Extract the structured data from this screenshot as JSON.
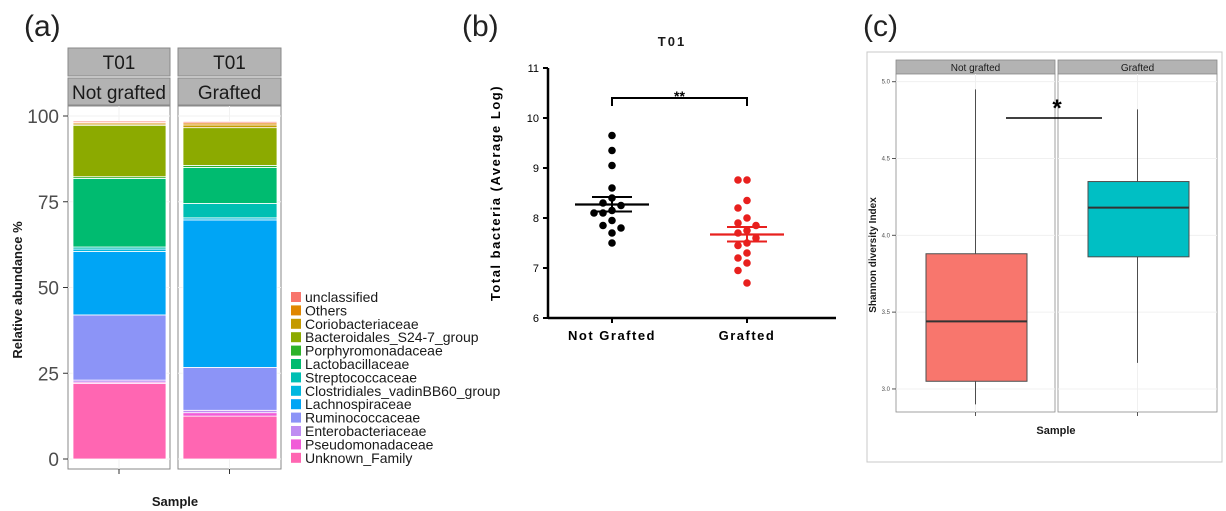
{
  "panels": {
    "a": "(a)",
    "b": "(b)",
    "c": "(c)"
  },
  "colors": {
    "strip_bg": "#b3b3b3",
    "panel_bg": "#ebebeb",
    "grid": "#ffffff",
    "not_grafted_points": "#000000",
    "grafted_points": "#e8201e",
    "box_not_grafted": "#f8766d",
    "box_grafted": "#00bfc4"
  },
  "chart_data": [
    {
      "type": "bar",
      "stacked": true,
      "panel": "(a)",
      "facet_top": "T01",
      "facets": [
        "Not grafted",
        "Grafted"
      ],
      "categories": [
        "Not grafted",
        "Grafted"
      ],
      "xlabel": "Sample",
      "ylabel": "Relative abundance %",
      "ylim": [
        0,
        100
      ],
      "yticks": [
        0,
        25,
        50,
        75,
        100
      ],
      "legend_position": "right",
      "legend_order": [
        "unclassified",
        "Others",
        "Coriobacteriaceae",
        "Bacteroidales_S24-7_group",
        "Porphyromonadaceae",
        "Lactobacillaceae",
        "Streptococcaceae",
        "Clostridiales_vadinBB60_group",
        "Lachnospiraceae",
        "Ruminococcaceae",
        "Enterobacteriaceae",
        "Pseudomonadaceae",
        "Unknown_Family"
      ],
      "series": [
        {
          "name": "Unknown_Family",
          "color": "#ff66b2",
          "values": [
            22,
            12.5
          ]
        },
        {
          "name": "Pseudomonadaceae",
          "color": "#f15bd8",
          "values": [
            0.4,
            1
          ]
        },
        {
          "name": "Enterobacteriaceae",
          "color": "#c08cf2",
          "values": [
            0.6,
            0.7
          ]
        },
        {
          "name": "Ruminococcaceae",
          "color": "#8c94f7",
          "values": [
            19,
            12.5
          ]
        },
        {
          "name": "Lachnospiraceae",
          "color": "#00a5f5",
          "values": [
            18.5,
            43
          ]
        },
        {
          "name": "Clostridiales_vadinBB60_group",
          "color": "#00b8e0",
          "values": [
            0.7,
            0.6
          ]
        },
        {
          "name": "Streptococcaceae",
          "color": "#00bfb3",
          "values": [
            0.6,
            4.2
          ]
        },
        {
          "name": "Lactobacillaceae",
          "color": "#00bb70",
          "values": [
            20,
            10.5
          ]
        },
        {
          "name": "Porphyromonadaceae",
          "color": "#2cb22a",
          "values": [
            0.5,
            0.6
          ]
        },
        {
          "name": "Bacteroidales_S24-7_group",
          "color": "#8caa00",
          "values": [
            15,
            11
          ]
        },
        {
          "name": "Coriobacteriaceae",
          "color": "#c49a00",
          "values": [
            0.4,
            0.8
          ]
        },
        {
          "name": "Others",
          "color": "#e08700",
          "values": [
            0.4,
            0.6
          ]
        },
        {
          "name": "unclassified",
          "color": "#f8766d",
          "values": [
            0.4,
            0.4
          ]
        }
      ]
    },
    {
      "type": "scatter",
      "panel": "(b)",
      "title": "T01",
      "xlabel": "",
      "ylabel": "Total bacteria (Average Log)",
      "categories": [
        "Not Grafted",
        "Grafted"
      ],
      "ylim": [
        6,
        11
      ],
      "yticks": [
        6,
        7,
        8,
        9,
        10,
        11
      ],
      "significance": "**",
      "series": [
        {
          "category": "Not Grafted",
          "color": "#000000",
          "mean": 8.27,
          "sem_low": 8.13,
          "sem_high": 8.42,
          "points": [
            9.65,
            9.35,
            9.05,
            8.6,
            8.4,
            8.3,
            8.25,
            8.15,
            8.1,
            8.1,
            7.95,
            7.85,
            7.8,
            7.7,
            7.5
          ]
        },
        {
          "category": "Grafted",
          "color": "#e8201e",
          "mean": 7.67,
          "sem_low": 7.53,
          "sem_high": 7.82,
          "points": [
            8.76,
            8.76,
            8.35,
            8.2,
            8.0,
            7.9,
            7.85,
            7.75,
            7.7,
            7.6,
            7.5,
            7.45,
            7.3,
            7.2,
            7.1,
            6.95,
            6.7
          ]
        }
      ]
    },
    {
      "type": "box",
      "panel": "(c)",
      "facets": [
        "Not grafted",
        "Grafted"
      ],
      "xlabel": "Sample",
      "ylabel": "Shannon diversity Index",
      "ylim": [
        2.85,
        5.05
      ],
      "yticks": [
        3.0,
        3.5,
        4.0,
        4.5,
        5.0
      ],
      "significance": "*",
      "boxes": [
        {
          "name": "Not grafted",
          "color": "#f8766d",
          "min": 2.9,
          "q1": 3.05,
          "median": 3.44,
          "q3": 3.88,
          "max": 4.95
        },
        {
          "name": "Grafted",
          "color": "#00bfc4",
          "min": 3.17,
          "q1": 3.86,
          "median": 4.18,
          "q3": 4.35,
          "max": 4.82
        }
      ]
    }
  ]
}
